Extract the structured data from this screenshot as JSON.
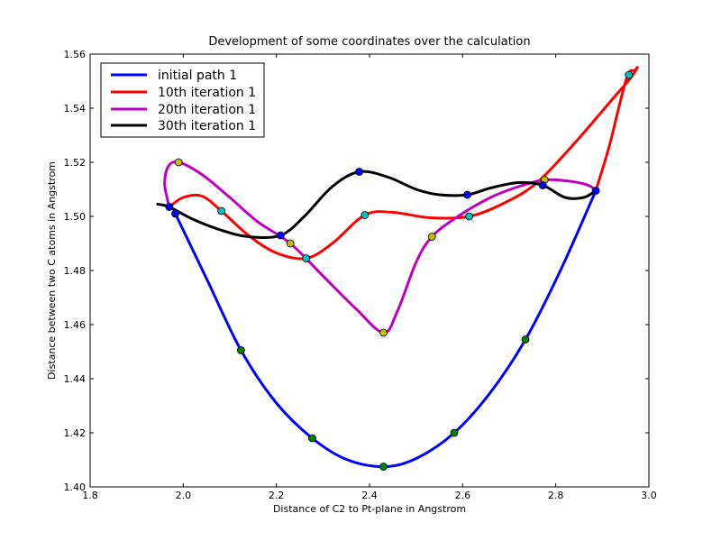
{
  "chart_data": {
    "type": "line",
    "title": "Development of some coordinates over the calculation",
    "xlabel": "Distance of C2 to Pt-plane in Angstrom",
    "ylabel": "Distance between two C atoms in Angstrom",
    "xlim": [
      1.8,
      3.0
    ],
    "ylim": [
      1.4,
      1.56
    ],
    "xticks": [
      1.8,
      2.0,
      2.2,
      2.4,
      2.6,
      2.8,
      3.0
    ],
    "xtick_labels": [
      "1.8",
      "2.0",
      "2.2",
      "2.4",
      "2.6",
      "2.8",
      "3.0"
    ],
    "yticks": [
      1.4,
      1.42,
      1.44,
      1.46,
      1.48,
      1.5,
      1.52,
      1.54,
      1.56
    ],
    "ytick_labels": [
      "1.40",
      "1.42",
      "1.44",
      "1.46",
      "1.48",
      "1.50",
      "1.52",
      "1.54",
      "1.56"
    ],
    "legend_position": "top-left",
    "series": [
      {
        "name": "initial path 1",
        "color": "#0000ff",
        "curve": [
          [
            1.983,
            1.501
          ],
          [
            2.05,
            1.477
          ],
          [
            2.124,
            1.4505
          ],
          [
            2.2,
            1.431
          ],
          [
            2.277,
            1.418
          ],
          [
            2.35,
            1.4102
          ],
          [
            2.43,
            1.4075
          ],
          [
            2.5,
            1.4105
          ],
          [
            2.582,
            1.42
          ],
          [
            2.66,
            1.435
          ],
          [
            2.735,
            1.4545
          ],
          [
            2.81,
            1.48
          ],
          [
            2.886,
            1.5095
          ]
        ],
        "markers": [
          {
            "x": 1.983,
            "y": 1.501,
            "color": "#0000ff"
          },
          {
            "x": 2.124,
            "y": 1.4505,
            "color": "#008000"
          },
          {
            "x": 2.277,
            "y": 1.418,
            "color": "#008000"
          },
          {
            "x": 2.43,
            "y": 1.4075,
            "color": "#008000"
          },
          {
            "x": 2.582,
            "y": 1.42,
            "color": "#008000"
          },
          {
            "x": 2.735,
            "y": 1.4545,
            "color": "#008000"
          },
          {
            "x": 2.886,
            "y": 1.5095,
            "color": "#0000ff"
          }
        ]
      },
      {
        "name": "10th iteration 1",
        "color": "#ff0000",
        "curve": [
          [
            1.97,
            1.5035
          ],
          [
            2.0,
            1.507
          ],
          [
            2.04,
            1.5075
          ],
          [
            2.082,
            1.502
          ],
          [
            2.14,
            1.493
          ],
          [
            2.2,
            1.4865
          ],
          [
            2.264,
            1.4845
          ],
          [
            2.32,
            1.49
          ],
          [
            2.39,
            1.5005
          ],
          [
            2.45,
            1.5015
          ],
          [
            2.53,
            1.4995
          ],
          [
            2.614,
            1.5
          ],
          [
            2.69,
            1.505
          ],
          [
            2.76,
            1.5125
          ],
          [
            2.84,
            1.527
          ],
          [
            2.92,
            1.543
          ],
          [
            2.96,
            1.551
          ],
          [
            2.975,
            1.555
          ],
          [
            2.97,
            1.554
          ],
          [
            2.955,
            1.5525
          ],
          [
            2.935,
            1.54
          ],
          [
            2.915,
            1.526
          ],
          [
            2.886,
            1.5095
          ]
        ],
        "markers": [
          {
            "x": 2.082,
            "y": 1.502,
            "color": "#00bfbf"
          },
          {
            "x": 2.264,
            "y": 1.4845,
            "color": "#00bfbf"
          },
          {
            "x": 2.39,
            "y": 1.5005,
            "color": "#00bfbf"
          },
          {
            "x": 2.614,
            "y": 1.5,
            "color": "#00bfbf"
          },
          {
            "x": 2.957,
            "y": 1.5523,
            "color": "#00bfbf"
          }
        ]
      },
      {
        "name": "20th iteration 1",
        "color": "#bf00bf",
        "curve": [
          [
            1.97,
            1.5035
          ],
          [
            1.96,
            1.512
          ],
          [
            1.968,
            1.5185
          ],
          [
            1.99,
            1.52
          ],
          [
            2.04,
            1.5155
          ],
          [
            2.1,
            1.507
          ],
          [
            2.16,
            1.498
          ],
          [
            2.23,
            1.49
          ],
          [
            2.3,
            1.478
          ],
          [
            2.37,
            1.466
          ],
          [
            2.43,
            1.457
          ],
          [
            2.46,
            1.465
          ],
          [
            2.5,
            1.483
          ],
          [
            2.534,
            1.4925
          ],
          [
            2.59,
            1.5
          ],
          [
            2.66,
            1.507
          ],
          [
            2.72,
            1.511
          ],
          [
            2.776,
            1.5135
          ],
          [
            2.83,
            1.513
          ],
          [
            2.87,
            1.5115
          ],
          [
            2.886,
            1.5095
          ]
        ],
        "markers": [
          {
            "x": 1.99,
            "y": 1.52,
            "color": "#bfbf00"
          },
          {
            "x": 2.23,
            "y": 1.49,
            "color": "#bfbf00"
          },
          {
            "x": 2.43,
            "y": 1.457,
            "color": "#bfbf00"
          },
          {
            "x": 2.534,
            "y": 1.4925,
            "color": "#bfbf00"
          },
          {
            "x": 2.776,
            "y": 1.5135,
            "color": "#bfbf00"
          }
        ]
      },
      {
        "name": "30th iteration 1",
        "color": "#000000",
        "curve": [
          [
            1.945,
            1.5045
          ],
          [
            1.97,
            1.5035
          ],
          [
            2.02,
            1.499
          ],
          [
            2.08,
            1.495
          ],
          [
            2.14,
            1.4925
          ],
          [
            2.209,
            1.493
          ],
          [
            2.26,
            1.5
          ],
          [
            2.32,
            1.511
          ],
          [
            2.378,
            1.5165
          ],
          [
            2.44,
            1.5145
          ],
          [
            2.5,
            1.51
          ],
          [
            2.55,
            1.508
          ],
          [
            2.61,
            1.508
          ],
          [
            2.66,
            1.5105
          ],
          [
            2.72,
            1.5125
          ],
          [
            2.772,
            1.5115
          ],
          [
            2.82,
            1.507
          ],
          [
            2.86,
            1.507
          ],
          [
            2.886,
            1.5095
          ]
        ],
        "markers": [
          {
            "x": 1.97,
            "y": 1.5035,
            "color": "#0000ff"
          },
          {
            "x": 2.209,
            "y": 1.493,
            "color": "#0000ff"
          },
          {
            "x": 2.378,
            "y": 1.5165,
            "color": "#0000ff"
          },
          {
            "x": 2.61,
            "y": 1.508,
            "color": "#0000ff"
          },
          {
            "x": 2.772,
            "y": 1.5115,
            "color": "#0000ff"
          }
        ]
      }
    ]
  }
}
